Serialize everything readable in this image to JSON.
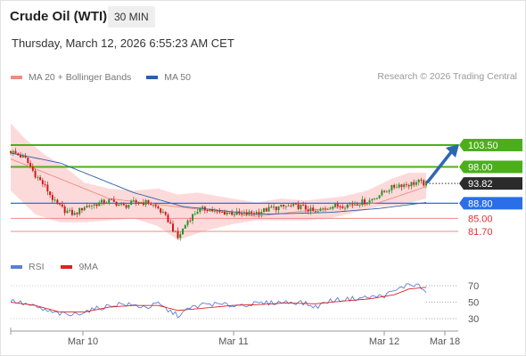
{
  "header": {
    "title": "Crude Oil (WTI)",
    "interval": "30 MIN"
  },
  "timestamp": "Thursday, March 12, 2026 6:55:23 AM CET",
  "legend": {
    "items": [
      {
        "label": "MA 20 + Bollinger Bands",
        "color": "#f28b82"
      },
      {
        "label": "MA 50",
        "color": "#2e5fa8"
      }
    ],
    "credit": "Research © 2026 Trading Central"
  },
  "rsi_legend": {
    "items": [
      {
        "label": "RSI",
        "color": "#5b7fd6"
      },
      {
        "label": "9MA",
        "color": "#e02020"
      }
    ]
  },
  "colors": {
    "up": "#2a8f2a",
    "down": "#d01818",
    "band": "#fbd4d4",
    "resistance": "#4caf1a",
    "pivot": "#2a6fe8",
    "support": "#f08a8a",
    "dark_badge": "#2b2b2b",
    "arrow": "#2e67b0"
  },
  "chart_data": [
    {
      "type": "candlestick",
      "title": "Crude Oil (WTI)",
      "timeframe": "30 MIN",
      "x_tick_labels": [
        "Mar 10",
        "Mar 11",
        "Mar 12",
        "Mar 18"
      ],
      "levels": [
        {
          "value": 103.5,
          "label": "103.50",
          "kind": "resistance"
        },
        {
          "value": 98.0,
          "label": "98.00",
          "kind": "resistance"
        },
        {
          "value": 93.82,
          "label": "93.82",
          "kind": "last"
        },
        {
          "value": 88.8,
          "label": "88.80",
          "kind": "pivot"
        },
        {
          "value": 85.0,
          "label": "85.00",
          "kind": "support"
        },
        {
          "value": 81.7,
          "label": "81.70",
          "kind": "support"
        }
      ],
      "projection": {
        "from": 93.82,
        "to": 103.5,
        "direction": "up"
      },
      "anchors": [
        [
          0,
          102.0
        ],
        [
          6,
          100.0
        ],
        [
          10,
          96.0
        ],
        [
          14,
          93.0
        ],
        [
          18,
          89.0
        ],
        [
          22,
          87.0
        ],
        [
          26,
          86.0
        ],
        [
          30,
          88.0
        ],
        [
          34,
          88.5
        ],
        [
          40,
          89.5
        ],
        [
          46,
          88.0
        ],
        [
          50,
          89.0
        ],
        [
          56,
          89.0
        ],
        [
          60,
          87.5
        ],
        [
          64,
          84.5
        ],
        [
          68,
          80.0
        ],
        [
          72,
          84.5
        ],
        [
          76,
          87.0
        ],
        [
          80,
          87.5
        ],
        [
          84,
          86.5
        ],
        [
          88,
          86.5
        ],
        [
          94,
          86.0
        ],
        [
          100,
          86.5
        ],
        [
          106,
          87.5
        ],
        [
          112,
          88.0
        ],
        [
          118,
          88.0
        ],
        [
          124,
          86.5
        ],
        [
          130,
          88.0
        ],
        [
          136,
          88.3
        ],
        [
          142,
          89.0
        ],
        [
          146,
          89.5
        ],
        [
          150,
          91.0
        ],
        [
          154,
          92.5
        ],
        [
          158,
          93.5
        ],
        [
          162,
          93.6
        ],
        [
          166,
          94.2
        ],
        [
          169,
          93.6
        ]
      ],
      "ma20": [
        [
          0,
          100.0
        ],
        [
          40,
          90.0
        ],
        [
          100,
          85.5
        ],
        [
          150,
          89.0
        ],
        [
          169,
          93.0
        ]
      ],
      "ma50": [
        [
          0,
          101.5
        ],
        [
          20,
          99.0
        ],
        [
          50,
          91.5
        ],
        [
          70,
          88.0
        ],
        [
          100,
          86.0
        ],
        [
          130,
          86.5
        ],
        [
          150,
          87.5
        ],
        [
          169,
          89.0
        ]
      ],
      "bollinger_upper": [
        [
          0,
          109
        ],
        [
          6,
          105
        ],
        [
          14,
          101
        ],
        [
          22,
          98
        ],
        [
          30,
          94
        ],
        [
          40,
          92.5
        ],
        [
          50,
          92
        ],
        [
          60,
          92.5
        ],
        [
          68,
          91
        ],
        [
          76,
          91.5
        ],
        [
          90,
          90
        ],
        [
          100,
          89
        ],
        [
          110,
          90
        ],
        [
          120,
          89.5
        ],
        [
          135,
          90.5
        ],
        [
          145,
          92
        ],
        [
          155,
          95
        ],
        [
          162,
          96.5
        ],
        [
          169,
          96.5
        ]
      ],
      "bollinger_lower": [
        [
          0,
          92
        ],
        [
          10,
          86
        ],
        [
          20,
          84
        ],
        [
          30,
          84
        ],
        [
          40,
          84.5
        ],
        [
          50,
          85
        ],
        [
          60,
          83
        ],
        [
          68,
          79.5
        ],
        [
          80,
          82
        ],
        [
          90,
          83.5
        ],
        [
          100,
          84.5
        ],
        [
          110,
          84.5
        ],
        [
          120,
          84.5
        ],
        [
          130,
          85
        ],
        [
          140,
          86.5
        ],
        [
          150,
          88
        ],
        [
          160,
          88.5
        ],
        [
          169,
          90
        ]
      ]
    },
    {
      "type": "line",
      "title": "RSI",
      "series": [
        {
          "name": "RSI"
        },
        {
          "name": "9MA"
        }
      ],
      "y_ticks": [
        70,
        50,
        30
      ],
      "rsi": [
        [
          0,
          52
        ],
        [
          8,
          46
        ],
        [
          16,
          38
        ],
        [
          24,
          34
        ],
        [
          32,
          40
        ],
        [
          38,
          44
        ],
        [
          44,
          48
        ],
        [
          50,
          46
        ],
        [
          56,
          44
        ],
        [
          60,
          48
        ],
        [
          64,
          40
        ],
        [
          68,
          34
        ],
        [
          74,
          44
        ],
        [
          80,
          48
        ],
        [
          90,
          46
        ],
        [
          100,
          48
        ],
        [
          110,
          50
        ],
        [
          118,
          50
        ],
        [
          124,
          44
        ],
        [
          130,
          52
        ],
        [
          138,
          54
        ],
        [
          146,
          56
        ],
        [
          152,
          58
        ],
        [
          158,
          66
        ],
        [
          162,
          72
        ],
        [
          166,
          70
        ],
        [
          169,
          62
        ]
      ],
      "ma9": [
        [
          0,
          50
        ],
        [
          10,
          46
        ],
        [
          20,
          38
        ],
        [
          30,
          38
        ],
        [
          40,
          44
        ],
        [
          50,
          46
        ],
        [
          60,
          46
        ],
        [
          68,
          40
        ],
        [
          76,
          42
        ],
        [
          90,
          46
        ],
        [
          100,
          47
        ],
        [
          112,
          49
        ],
        [
          124,
          48
        ],
        [
          134,
          51
        ],
        [
          146,
          54
        ],
        [
          156,
          59
        ],
        [
          162,
          66
        ],
        [
          169,
          68
        ]
      ]
    }
  ]
}
